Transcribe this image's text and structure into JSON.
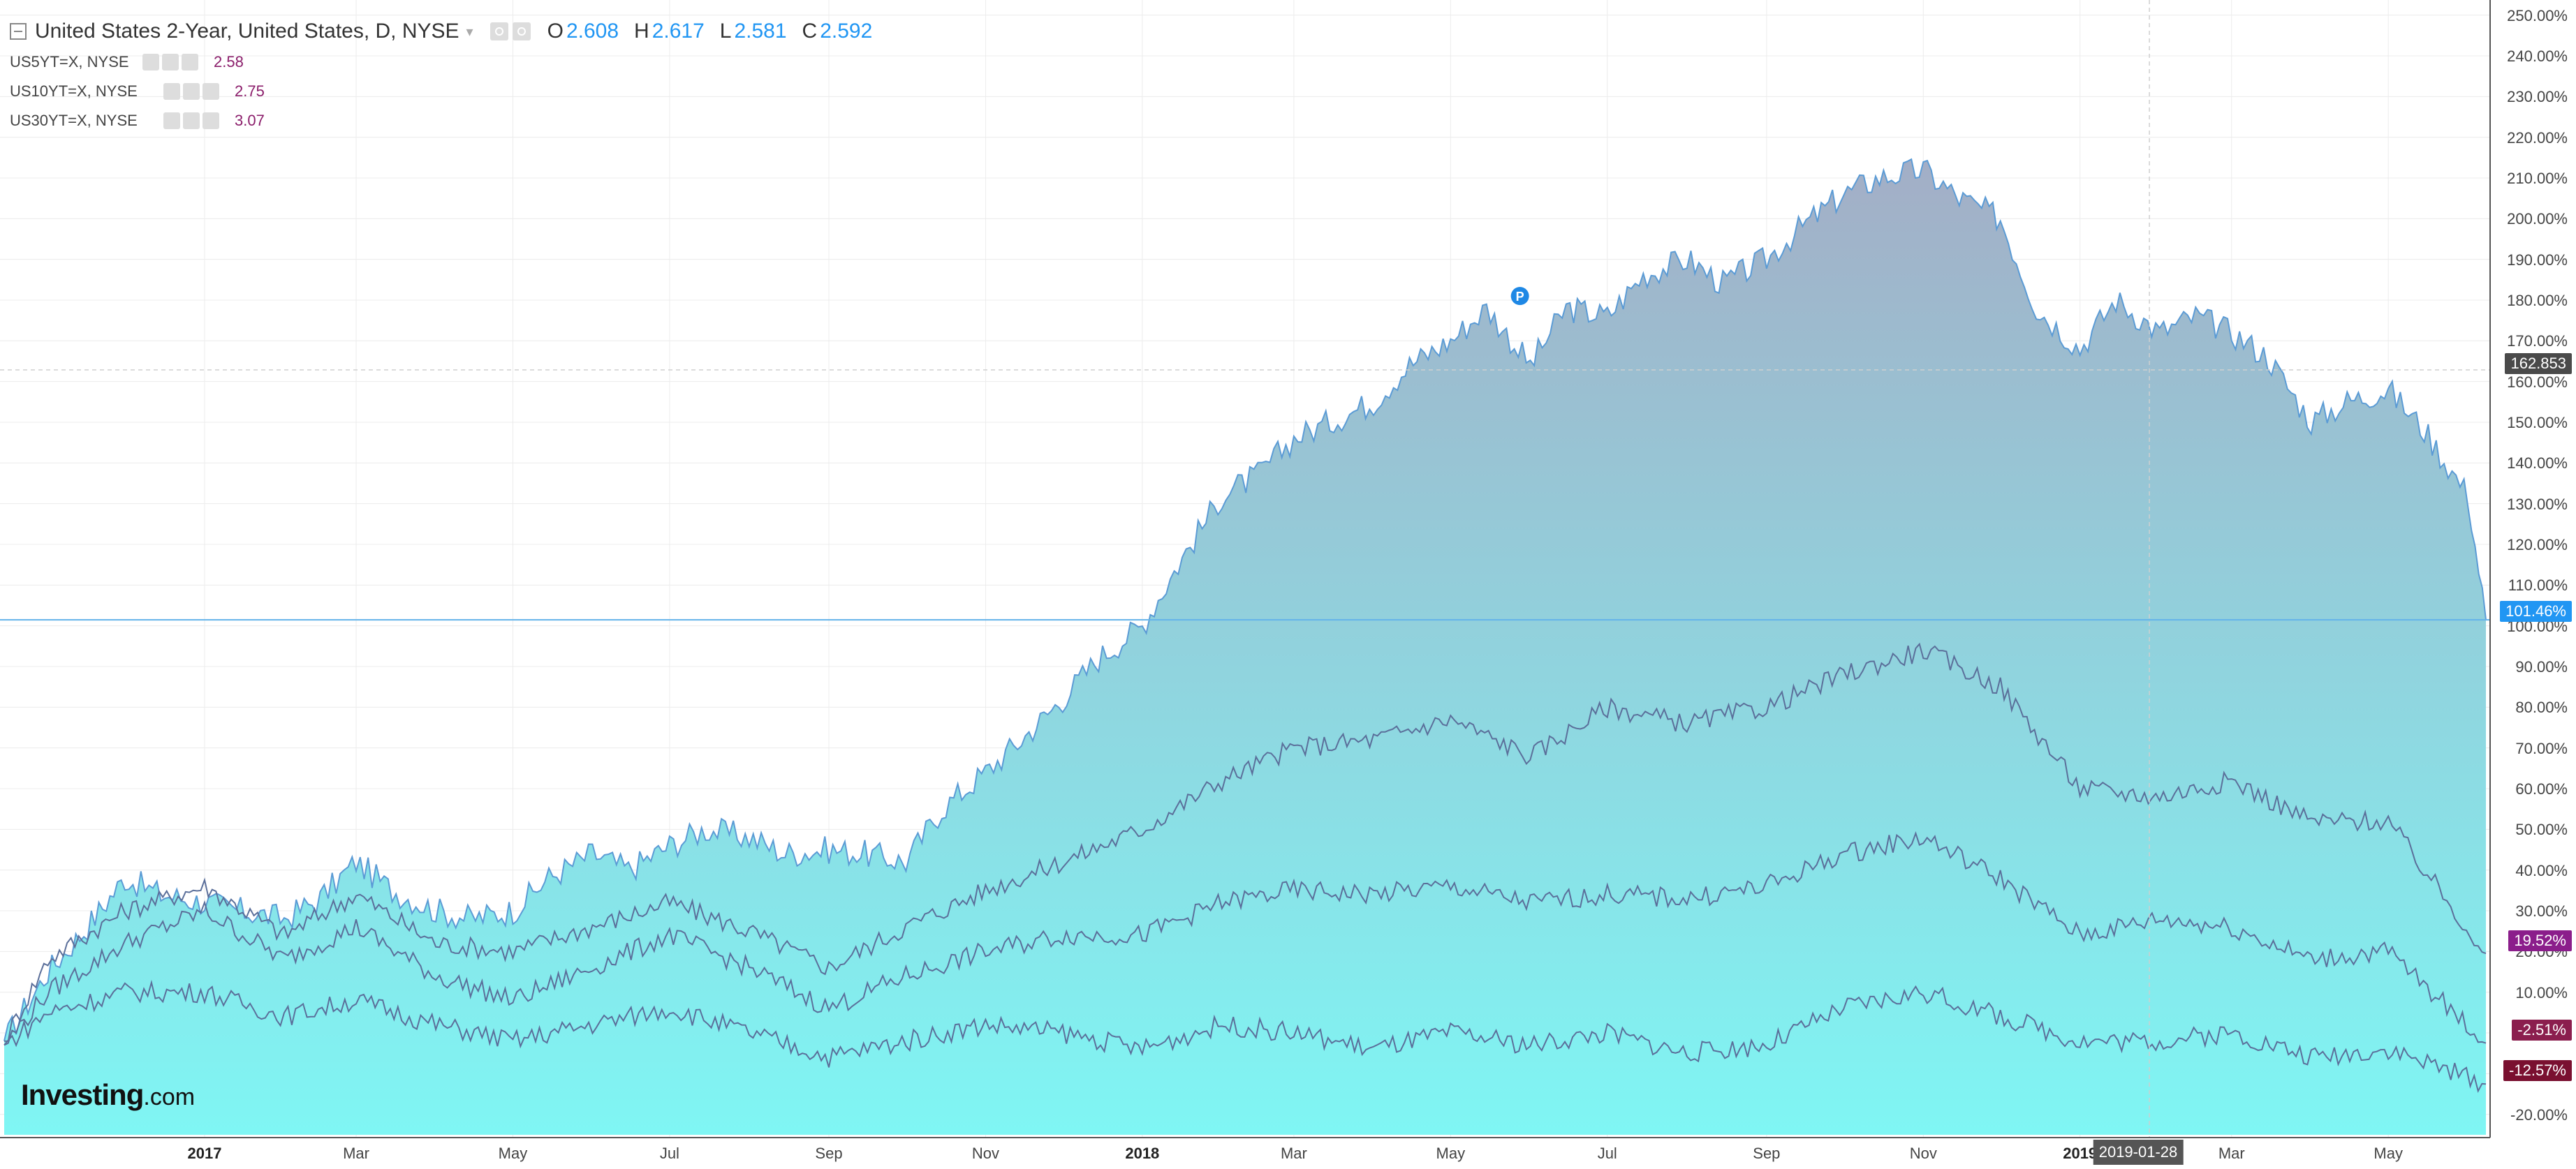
{
  "legend": {
    "main_title": "United States 2-Year, United States, D, NYSE",
    "ohlc": [
      {
        "key": "O",
        "value": "2.608"
      },
      {
        "key": "H",
        "value": "2.617"
      },
      {
        "key": "L",
        "value": "2.581"
      },
      {
        "key": "C",
        "value": "2.592"
      }
    ],
    "compare": [
      {
        "name": "US5YT=X, NYSE",
        "value": "2.58"
      },
      {
        "name": "US10YT=X, NYSE",
        "value": "2.75"
      },
      {
        "name": "US30YT=X, NYSE",
        "value": "3.07"
      }
    ]
  },
  "price_badges": {
    "hover": "162.853",
    "main": "101.46%",
    "us5": "19.52%",
    "us10": "-2.51%",
    "us30": "-12.57%"
  },
  "marker_label": "P",
  "logo": {
    "a": "Investing",
    "b": ".com"
  },
  "cursor_date": "2019-01-28",
  "colors": {
    "area_top": "#a3aec6",
    "area_bottom": "#7ff6f4",
    "main_line": "#5b9bd5",
    "compare_line": "#5b6f9a",
    "accent_blue": "#2196f3",
    "badge_hover": "#4a4a4a",
    "badge_us5": "#8b1e8b",
    "badge_us10": "#8b1e4e",
    "badge_us30": "#7a1030"
  },
  "chart_data": {
    "type": "area",
    "title": "United States 2-Year, United States, D, NYSE",
    "yunit": "%",
    "ylim": [
      -24,
      252
    ],
    "y_ticks": [
      250,
      240,
      230,
      220,
      210,
      200,
      190,
      180,
      170,
      160,
      150,
      140,
      130,
      120,
      110,
      100,
      90,
      80,
      70,
      60,
      50,
      40,
      30,
      20,
      10,
      0,
      -10,
      -20
    ],
    "y_tick_labels": [
      "250.00%",
      "240.00%",
      "230.00%",
      "220.00%",
      "210.00%",
      "200.00%",
      "190.00%",
      "180.00%",
      "170.00%",
      "160.00%",
      "150.00%",
      "140.00%",
      "130.00%",
      "120.00%",
      "110.00%",
      "100.00%",
      "90.00%",
      "80.00%",
      "70.00%",
      "60.00%",
      "50.00%",
      "40.00%",
      "30.00%",
      "20.00%",
      "10.00%",
      "0.00%",
      "-10.00%",
      "-20.00%"
    ],
    "x_range": [
      "2016-10-15",
      "2019-06-08"
    ],
    "x_ticks": [
      {
        "date": "2017-01-01",
        "label": "2017",
        "bold": true
      },
      {
        "date": "2017-03-01",
        "label": "Mar"
      },
      {
        "date": "2017-05-01",
        "label": "May"
      },
      {
        "date": "2017-07-01",
        "label": "Jul"
      },
      {
        "date": "2017-09-01",
        "label": "Sep"
      },
      {
        "date": "2017-11-01",
        "label": "Nov"
      },
      {
        "date": "2018-01-01",
        "label": "2018",
        "bold": true
      },
      {
        "date": "2018-03-01",
        "label": "Mar"
      },
      {
        "date": "2018-05-01",
        "label": "May"
      },
      {
        "date": "2018-07-01",
        "label": "Jul"
      },
      {
        "date": "2018-09-01",
        "label": "Sep"
      },
      {
        "date": "2018-11-01",
        "label": "Nov"
      },
      {
        "date": "2019-01-01",
        "label": "2019",
        "bold": true
      },
      {
        "date": "2019-03-01",
        "label": "Mar"
      },
      {
        "date": "2019-05-01",
        "label": "May"
      }
    ],
    "hover_value": 162.853,
    "series": [
      {
        "name": "United States 2-Year",
        "style": "area",
        "x": [
          "2016-10-15",
          "2016-11-01",
          "2016-11-15",
          "2016-12-01",
          "2016-12-15",
          "2017-01-01",
          "2017-01-15",
          "2017-02-01",
          "2017-02-15",
          "2017-03-01",
          "2017-03-15",
          "2017-04-01",
          "2017-04-15",
          "2017-05-01",
          "2017-05-15",
          "2017-06-01",
          "2017-06-15",
          "2017-07-01",
          "2017-07-15",
          "2017-08-01",
          "2017-08-15",
          "2017-09-01",
          "2017-09-15",
          "2017-10-01",
          "2017-10-15",
          "2017-11-01",
          "2017-11-15",
          "2017-12-01",
          "2017-12-15",
          "2018-01-01",
          "2018-01-15",
          "2018-02-01",
          "2018-02-15",
          "2018-03-01",
          "2018-03-15",
          "2018-04-01",
          "2018-04-15",
          "2018-05-01",
          "2018-05-15",
          "2018-06-01",
          "2018-06-15",
          "2018-07-01",
          "2018-07-15",
          "2018-08-01",
          "2018-08-15",
          "2018-09-01",
          "2018-09-15",
          "2018-10-01",
          "2018-10-15",
          "2018-11-01",
          "2018-11-15",
          "2018-12-01",
          "2018-12-15",
          "2019-01-01",
          "2019-01-15",
          "2019-02-01",
          "2019-02-15",
          "2019-03-01",
          "2019-03-15",
          "2019-04-01",
          "2019-04-15",
          "2019-05-01",
          "2019-05-15",
          "2019-06-01",
          "2019-06-08"
        ],
        "values": [
          -2,
          15,
          25,
          38,
          34,
          32,
          30,
          28,
          33,
          42,
          35,
          30,
          28,
          30,
          38,
          44,
          40,
          46,
          50,
          48,
          44,
          45,
          44,
          42,
          55,
          64,
          72,
          82,
          92,
          100,
          115,
          132,
          137,
          146,
          150,
          155,
          164,
          170,
          178,
          164,
          178,
          176,
          186,
          190,
          184,
          190,
          198,
          206,
          210,
          212,
          205,
          200,
          178,
          168,
          180,
          172,
          176,
          172,
          166,
          150,
          155,
          158,
          148,
          132,
          101.46
        ]
      },
      {
        "name": "US5YT=X",
        "style": "line",
        "x": [
          "2016-10-15",
          "2016-11-01",
          "2016-12-01",
          "2017-01-01",
          "2017-02-01",
          "2017-03-01",
          "2017-04-01",
          "2017-05-01",
          "2017-06-01",
          "2017-07-01",
          "2017-08-01",
          "2017-09-01",
          "2017-10-01",
          "2017-11-01",
          "2017-12-01",
          "2018-01-01",
          "2018-02-01",
          "2018-03-01",
          "2018-04-01",
          "2018-05-01",
          "2018-06-01",
          "2018-07-01",
          "2018-08-01",
          "2018-09-01",
          "2018-10-01",
          "2018-11-01",
          "2018-12-01",
          "2019-01-01",
          "2019-02-01",
          "2019-03-01",
          "2019-04-01",
          "2019-05-01",
          "2019-06-08"
        ],
        "values": [
          -2,
          18,
          30,
          36,
          24,
          34,
          22,
          20,
          26,
          32,
          25,
          16,
          26,
          35,
          42,
          50,
          62,
          70,
          72,
          77,
          68,
          80,
          76,
          80,
          88,
          94,
          85,
          60,
          58,
          62,
          52,
          52,
          19.52
        ]
      },
      {
        "name": "US10YT=X",
        "style": "line",
        "x": [
          "2016-10-15",
          "2016-11-01",
          "2016-12-01",
          "2017-01-01",
          "2017-02-01",
          "2017-03-01",
          "2017-04-01",
          "2017-05-01",
          "2017-06-01",
          "2017-07-01",
          "2017-08-01",
          "2017-09-01",
          "2017-10-01",
          "2017-11-01",
          "2017-12-01",
          "2018-01-01",
          "2018-02-01",
          "2018-03-01",
          "2018-04-01",
          "2018-05-01",
          "2018-06-01",
          "2018-07-01",
          "2018-08-01",
          "2018-09-01",
          "2018-10-01",
          "2018-11-01",
          "2018-12-01",
          "2019-01-01",
          "2019-02-01",
          "2019-03-01",
          "2019-04-01",
          "2019-05-01",
          "2019-06-08"
        ],
        "values": [
          -3,
          10,
          22,
          30,
          18,
          26,
          14,
          8,
          16,
          24,
          16,
          6,
          14,
          20,
          24,
          24,
          32,
          35,
          34,
          36,
          32,
          34,
          33,
          36,
          44,
          48,
          38,
          24,
          28,
          26,
          18,
          20,
          -2.51
        ]
      },
      {
        "name": "US30YT=X",
        "style": "line",
        "x": [
          "2016-10-15",
          "2016-11-01",
          "2016-12-01",
          "2017-01-01",
          "2017-02-01",
          "2017-03-01",
          "2017-04-01",
          "2017-05-01",
          "2017-06-01",
          "2017-07-01",
          "2017-08-01",
          "2017-09-01",
          "2017-10-01",
          "2017-11-01",
          "2017-12-01",
          "2018-01-01",
          "2018-02-01",
          "2018-03-01",
          "2018-04-01",
          "2018-05-01",
          "2018-06-01",
          "2018-07-01",
          "2018-08-01",
          "2018-09-01",
          "2018-10-01",
          "2018-11-01",
          "2018-12-01",
          "2019-01-01",
          "2019-02-01",
          "2019-03-01",
          "2019-04-01",
          "2019-05-01",
          "2019-06-08"
        ],
        "values": [
          -3,
          5,
          10,
          10,
          4,
          8,
          2,
          -2,
          2,
          6,
          0,
          -6,
          -2,
          2,
          0,
          -4,
          2,
          0,
          -4,
          0,
          -3,
          0,
          -5,
          -3,
          6,
          10,
          4,
          -2,
          -2,
          0,
          -6,
          -4,
          -12.57
        ]
      }
    ]
  }
}
